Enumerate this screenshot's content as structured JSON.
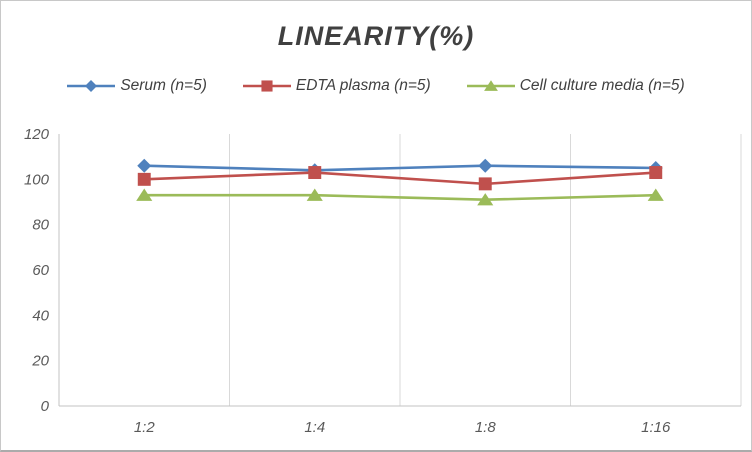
{
  "chart_data": {
    "type": "line",
    "title": "LINEARITY(%)",
    "xlabel": "",
    "ylabel": "",
    "categories": [
      "1:2",
      "1:4",
      "1:8",
      "1:16"
    ],
    "series": [
      {
        "name": "Serum (n=5)",
        "marker": "diamond",
        "color": "#4F81BD",
        "values": [
          106,
          104,
          106,
          105
        ]
      },
      {
        "name": "EDTA plasma (n=5)",
        "marker": "square",
        "color": "#C0504D",
        "values": [
          100,
          103,
          98,
          103
        ]
      },
      {
        "name": "Cell culture media (n=5)",
        "marker": "triangle",
        "color": "#9BBB59",
        "values": [
          93,
          93,
          91,
          93
        ]
      }
    ],
    "ylim": [
      0,
      120
    ],
    "yticks": [
      0,
      20,
      40,
      60,
      80,
      100,
      120
    ],
    "grid": "vertical-only",
    "legend_position": "top",
    "colors": {
      "axis_line": "#c3c3c3",
      "gridline": "#d9d9d9",
      "tick_text": "#595959",
      "title_text": "#404040",
      "background": "#ffffff"
    }
  }
}
